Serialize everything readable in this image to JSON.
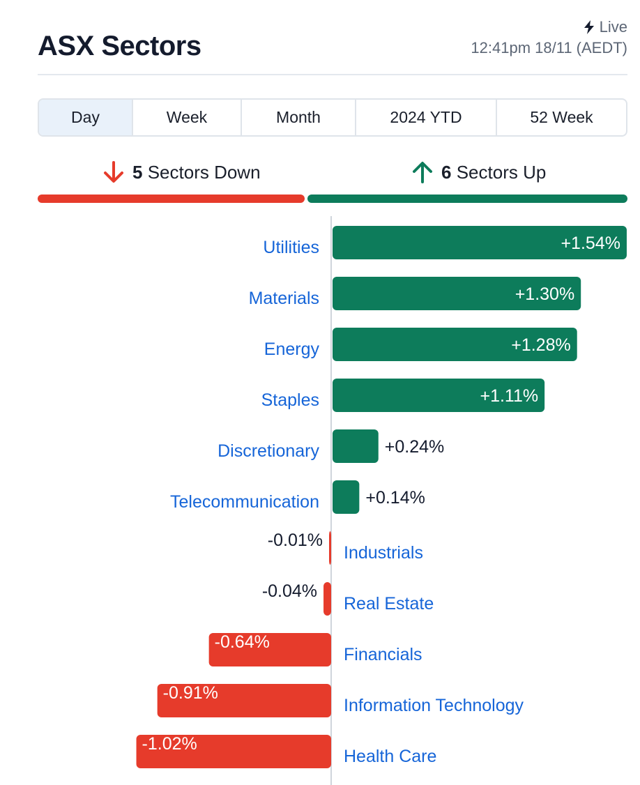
{
  "header": {
    "title": "ASX Sectors",
    "live_label": "Live",
    "timestamp": "12:41pm 18/11 (AEDT)"
  },
  "tabs": [
    {
      "label": "Day",
      "active": true
    },
    {
      "label": "Week",
      "active": false
    },
    {
      "label": "Month",
      "active": false
    },
    {
      "label": "2024 YTD",
      "active": false
    },
    {
      "label": "52 Week",
      "active": false
    }
  ],
  "summary": {
    "down_count": "5",
    "down_label": "Sectors Down",
    "up_count": "6",
    "up_label": "Sectors Up",
    "down_fraction": 0.4545,
    "up_fraction": 0.5455
  },
  "colors": {
    "positive": "#0d7c5b",
    "negative": "#e63b2b",
    "link": "#1665d8",
    "active_tab_bg": "#e9f1fa"
  },
  "chart_data": {
    "type": "bar",
    "orientation": "horizontal",
    "unit": "%",
    "categories": [
      "Utilities",
      "Materials",
      "Energy",
      "Staples",
      "Discretionary",
      "Telecommunication",
      "Industrials",
      "Real Estate",
      "Financials",
      "Information Technology",
      "Health Care"
    ],
    "values": [
      1.54,
      1.3,
      1.28,
      1.11,
      0.24,
      0.14,
      -0.01,
      -0.04,
      -0.64,
      -0.91,
      -1.02
    ],
    "value_labels": [
      "+1.54%",
      "+1.30%",
      "+1.28%",
      "+1.11%",
      "+0.24%",
      "+0.14%",
      "-0.01%",
      "-0.04%",
      "-0.64%",
      "-0.91%",
      "-1.02%"
    ],
    "title": "",
    "xlabel": "",
    "ylabel": "",
    "xlim": [
      -1.02,
      1.54
    ],
    "grid": false,
    "legend": "none"
  }
}
